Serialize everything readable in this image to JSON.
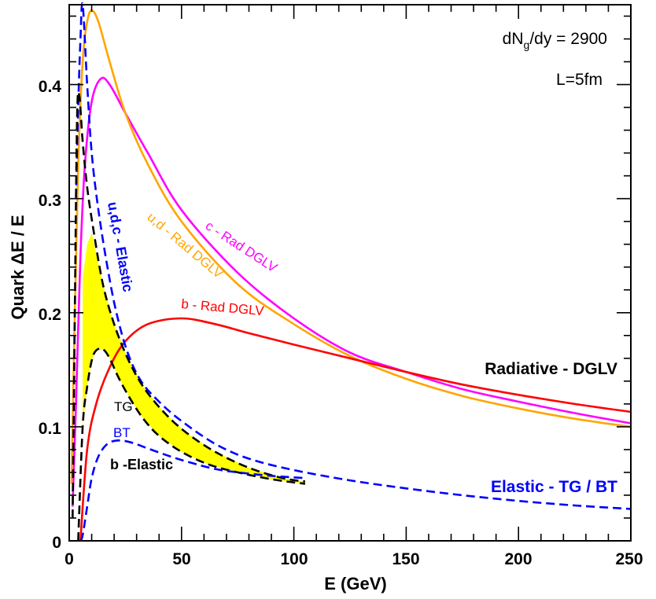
{
  "chart_data": {
    "type": "line",
    "xlabel": "E (GeV)",
    "ylabel": "Quark ΔE / E",
    "xlim": [
      0,
      250
    ],
    "ylim": [
      0,
      0.47
    ],
    "x_ticks": [
      0,
      50,
      100,
      150,
      200,
      250
    ],
    "x_tick_labels": [
      "0",
      "50",
      "100",
      "150",
      "200",
      "250"
    ],
    "y_ticks": [
      0,
      0.1,
      0.2,
      0.3,
      0.4
    ],
    "y_tick_labels": [
      "0",
      "0.1",
      "0.2",
      "0.3",
      "0.4"
    ],
    "annotations": {
      "dndy": "dN",
      "dndy_sub": "g",
      "dndy_rest": "/dy = 2900",
      "length": "L=5fm",
      "radiative_group": "Radiative - DGLV",
      "elastic_group": "Elastic - TG / BT"
    },
    "series": [
      {
        "name": "c - Rad DGLV",
        "color": "#ff00ff",
        "style": "solid",
        "label_color": "#ff00ff",
        "points": [
          [
            1.5,
            0.03
          ],
          [
            3,
            0.12
          ],
          [
            5,
            0.25
          ],
          [
            7,
            0.33
          ],
          [
            10,
            0.385
          ],
          [
            14,
            0.405
          ],
          [
            18,
            0.4
          ],
          [
            25,
            0.375
          ],
          [
            35,
            0.34
          ],
          [
            50,
            0.29
          ],
          [
            75,
            0.235
          ],
          [
            100,
            0.195
          ],
          [
            125,
            0.165
          ],
          [
            150,
            0.148
          ],
          [
            175,
            0.133
          ],
          [
            200,
            0.122
          ],
          [
            225,
            0.112
          ],
          [
            250,
            0.103
          ]
        ]
      },
      {
        "name": "u,d - Rad DGLV",
        "color": "#ffa500",
        "style": "solid",
        "label_color": "#ffa500",
        "points": [
          [
            1,
            0.05
          ],
          [
            2.5,
            0.2
          ],
          [
            4,
            0.33
          ],
          [
            6,
            0.42
          ],
          [
            8,
            0.455
          ],
          [
            10,
            0.465
          ],
          [
            13,
            0.455
          ],
          [
            18,
            0.42
          ],
          [
            25,
            0.375
          ],
          [
            35,
            0.33
          ],
          [
            50,
            0.28
          ],
          [
            75,
            0.225
          ],
          [
            100,
            0.19
          ],
          [
            125,
            0.162
          ],
          [
            150,
            0.142
          ],
          [
            175,
            0.127
          ],
          [
            200,
            0.116
          ],
          [
            225,
            0.107
          ],
          [
            250,
            0.1
          ]
        ]
      },
      {
        "name": "b - Rad DGLV",
        "color": "#ff0000",
        "style": "solid",
        "label_color": "#ff0000",
        "points": [
          [
            5,
            0.0
          ],
          [
            8,
            0.08
          ],
          [
            12,
            0.12
          ],
          [
            18,
            0.152
          ],
          [
            25,
            0.175
          ],
          [
            35,
            0.19
          ],
          [
            50,
            0.195
          ],
          [
            65,
            0.19
          ],
          [
            80,
            0.182
          ],
          [
            100,
            0.172
          ],
          [
            125,
            0.16
          ],
          [
            150,
            0.148
          ],
          [
            175,
            0.137
          ],
          [
            200,
            0.128
          ],
          [
            225,
            0.12
          ],
          [
            250,
            0.113
          ]
        ]
      },
      {
        "name": "u,d,c - Elastic",
        "color": "#0000ff",
        "style": "dashed",
        "label_color": "#0000ff",
        "points": [
          [
            3,
            0.3
          ],
          [
            4,
            0.38
          ],
          [
            5,
            0.44
          ],
          [
            6,
            0.47
          ],
          [
            8,
            0.4
          ],
          [
            10,
            0.34
          ],
          [
            13,
            0.29
          ],
          [
            17,
            0.24
          ],
          [
            21,
            0.2
          ],
          [
            26,
            0.165
          ],
          [
            32,
            0.14
          ],
          [
            40,
            0.122
          ],
          [
            50,
            0.105
          ],
          [
            65,
            0.085
          ],
          [
            80,
            0.072
          ],
          [
            100,
            0.062
          ],
          [
            125,
            0.053
          ],
          [
            150,
            0.046
          ],
          [
            175,
            0.04
          ],
          [
            200,
            0.035
          ],
          [
            225,
            0.031
          ],
          [
            250,
            0.028
          ]
        ]
      },
      {
        "name": "TG",
        "color": "#000000",
        "style": "dashed",
        "label_color": "#000000",
        "points": [
          [
            1.5,
            0.02
          ],
          [
            2.5,
            0.2
          ],
          [
            3.5,
            0.37
          ],
          [
            4.5,
            0.39
          ],
          [
            6,
            0.35
          ],
          [
            8,
            0.31
          ],
          [
            11,
            0.27
          ],
          [
            15,
            0.225
          ],
          [
            20,
            0.19
          ],
          [
            26,
            0.16
          ],
          [
            33,
            0.135
          ],
          [
            42,
            0.113
          ],
          [
            52,
            0.095
          ],
          [
            65,
            0.078
          ],
          [
            80,
            0.064
          ],
          [
            95,
            0.055
          ],
          [
            105,
            0.052
          ]
        ]
      },
      {
        "name": "BT",
        "color": "#000000",
        "style": "dashed",
        "label_color": "#0000ff",
        "points": [
          [
            4,
            0.0
          ],
          [
            6,
            0.1
          ],
          [
            8,
            0.135
          ],
          [
            10,
            0.158
          ],
          [
            12,
            0.167
          ],
          [
            15,
            0.168
          ],
          [
            18,
            0.16
          ],
          [
            22,
            0.143
          ],
          [
            27,
            0.125
          ],
          [
            33,
            0.107
          ],
          [
            40,
            0.092
          ],
          [
            50,
            0.078
          ],
          [
            62,
            0.067
          ],
          [
            75,
            0.06
          ],
          [
            90,
            0.054
          ],
          [
            105,
            0.05
          ]
        ]
      },
      {
        "name": "b -Elastic",
        "color": "#0000ff",
        "style": "dashed",
        "label_color": "#000000",
        "points": [
          [
            5,
            0.0
          ],
          [
            6,
            0.005
          ],
          [
            8,
            0.03
          ],
          [
            10,
            0.055
          ],
          [
            13,
            0.074
          ],
          [
            17,
            0.085
          ],
          [
            22,
            0.088
          ],
          [
            28,
            0.086
          ],
          [
            35,
            0.081
          ],
          [
            45,
            0.074
          ],
          [
            55,
            0.068
          ],
          [
            65,
            0.063
          ],
          [
            75,
            0.06
          ],
          [
            90,
            0.057
          ],
          [
            105,
            0.055
          ]
        ]
      }
    ],
    "band": {
      "name": "TG-BT band",
      "color": "#ffff00",
      "upper": [
        [
          6,
          0.23
        ],
        [
          8,
          0.26
        ],
        [
          10,
          0.27
        ],
        [
          15,
          0.225
        ],
        [
          20,
          0.19
        ],
        [
          26,
          0.16
        ],
        [
          33,
          0.135
        ],
        [
          42,
          0.113
        ],
        [
          52,
          0.095
        ],
        [
          65,
          0.078
        ],
        [
          80,
          0.064
        ],
        [
          95,
          0.055
        ],
        [
          105,
          0.052
        ]
      ],
      "lower": [
        [
          105,
          0.05
        ],
        [
          90,
          0.054
        ],
        [
          75,
          0.06
        ],
        [
          62,
          0.067
        ],
        [
          50,
          0.078
        ],
        [
          40,
          0.092
        ],
        [
          33,
          0.107
        ],
        [
          27,
          0.125
        ],
        [
          22,
          0.143
        ],
        [
          18,
          0.16
        ],
        [
          15,
          0.168
        ],
        [
          12,
          0.167
        ],
        [
          10,
          0.158
        ],
        [
          8,
          0.135
        ],
        [
          6,
          0.1
        ]
      ]
    }
  }
}
